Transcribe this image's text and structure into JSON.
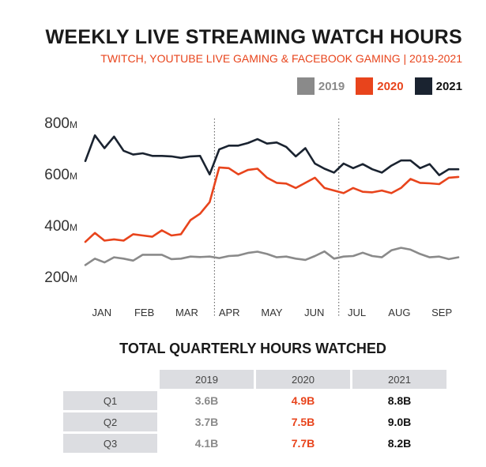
{
  "title": "WEEKLY LIVE STREAMING WATCH HOURS",
  "subtitle": "TWITCH, YOUTUBE LIVE GAMING & FACEBOOK GAMING  |  2019-2021",
  "colors": {
    "2019": "#8a8a8a",
    "2020": "#e8441c",
    "2021": "#1a2330"
  },
  "chart_data": {
    "type": "line",
    "title": "WEEKLY LIVE STREAMING WATCH HOURS",
    "subtitle": "TWITCH, YOUTUBE LIVE GAMING & FACEBOOK GAMING  |  2019-2021",
    "ylim": [
      200,
      800
    ],
    "yticks": [
      {
        "value": 800,
        "label": "800",
        "unit": "M"
      },
      {
        "value": 600,
        "label": "600",
        "unit": "M"
      },
      {
        "value": 400,
        "label": "400",
        "unit": "M"
      },
      {
        "value": 200,
        "label": "200",
        "unit": "M"
      }
    ],
    "xlim": [
      0,
      39
    ],
    "month_labels": [
      "JAN",
      "FEB",
      "MAR",
      "APR",
      "MAY",
      "JUN",
      "JUL",
      "AUG",
      "SEP"
    ],
    "quarter_dividers_after_week": [
      13,
      26
    ],
    "legend_position": "top-right",
    "grid": false,
    "series": [
      {
        "name": "2019",
        "values": [
          245,
          270,
          255,
          275,
          270,
          262,
          285,
          285,
          285,
          268,
          270,
          278,
          276,
          278,
          272,
          280,
          282,
          292,
          297,
          288,
          275,
          278,
          270,
          265,
          280,
          298,
          270,
          278,
          280,
          293,
          280,
          275,
          302,
          312,
          305,
          288,
          275,
          278,
          268,
          275
        ]
      },
      {
        "name": "2020",
        "values": [
          335,
          370,
          340,
          345,
          340,
          365,
          360,
          355,
          380,
          360,
          365,
          420,
          445,
          490,
          625,
          622,
          598,
          615,
          620,
          585,
          565,
          562,
          545,
          565,
          585,
          545,
          535,
          525,
          545,
          530,
          528,
          535,
          525,
          545,
          580,
          565,
          563,
          560,
          585,
          588
        ]
      },
      {
        "name": "2021",
        "values": [
          650,
          750,
          700,
          745,
          690,
          675,
          680,
          670,
          670,
          668,
          662,
          668,
          670,
          598,
          695,
          710,
          710,
          720,
          735,
          718,
          722,
          705,
          668,
          700,
          640,
          620,
          605,
          640,
          622,
          638,
          618,
          605,
          632,
          652,
          652,
          622,
          638,
          595,
          618,
          618
        ]
      }
    ]
  },
  "table": {
    "title": "TOTAL QUARTERLY HOURS WATCHED",
    "columns": [
      "2019",
      "2020",
      "2021"
    ],
    "rows": [
      {
        "label": "Q1",
        "values": [
          "3.6B",
          "4.9B",
          "8.8B"
        ]
      },
      {
        "label": "Q2",
        "values": [
          "3.7B",
          "7.5B",
          "9.0B"
        ]
      },
      {
        "label": "Q3",
        "values": [
          "4.1B",
          "7.7B",
          "8.2B"
        ]
      }
    ]
  }
}
